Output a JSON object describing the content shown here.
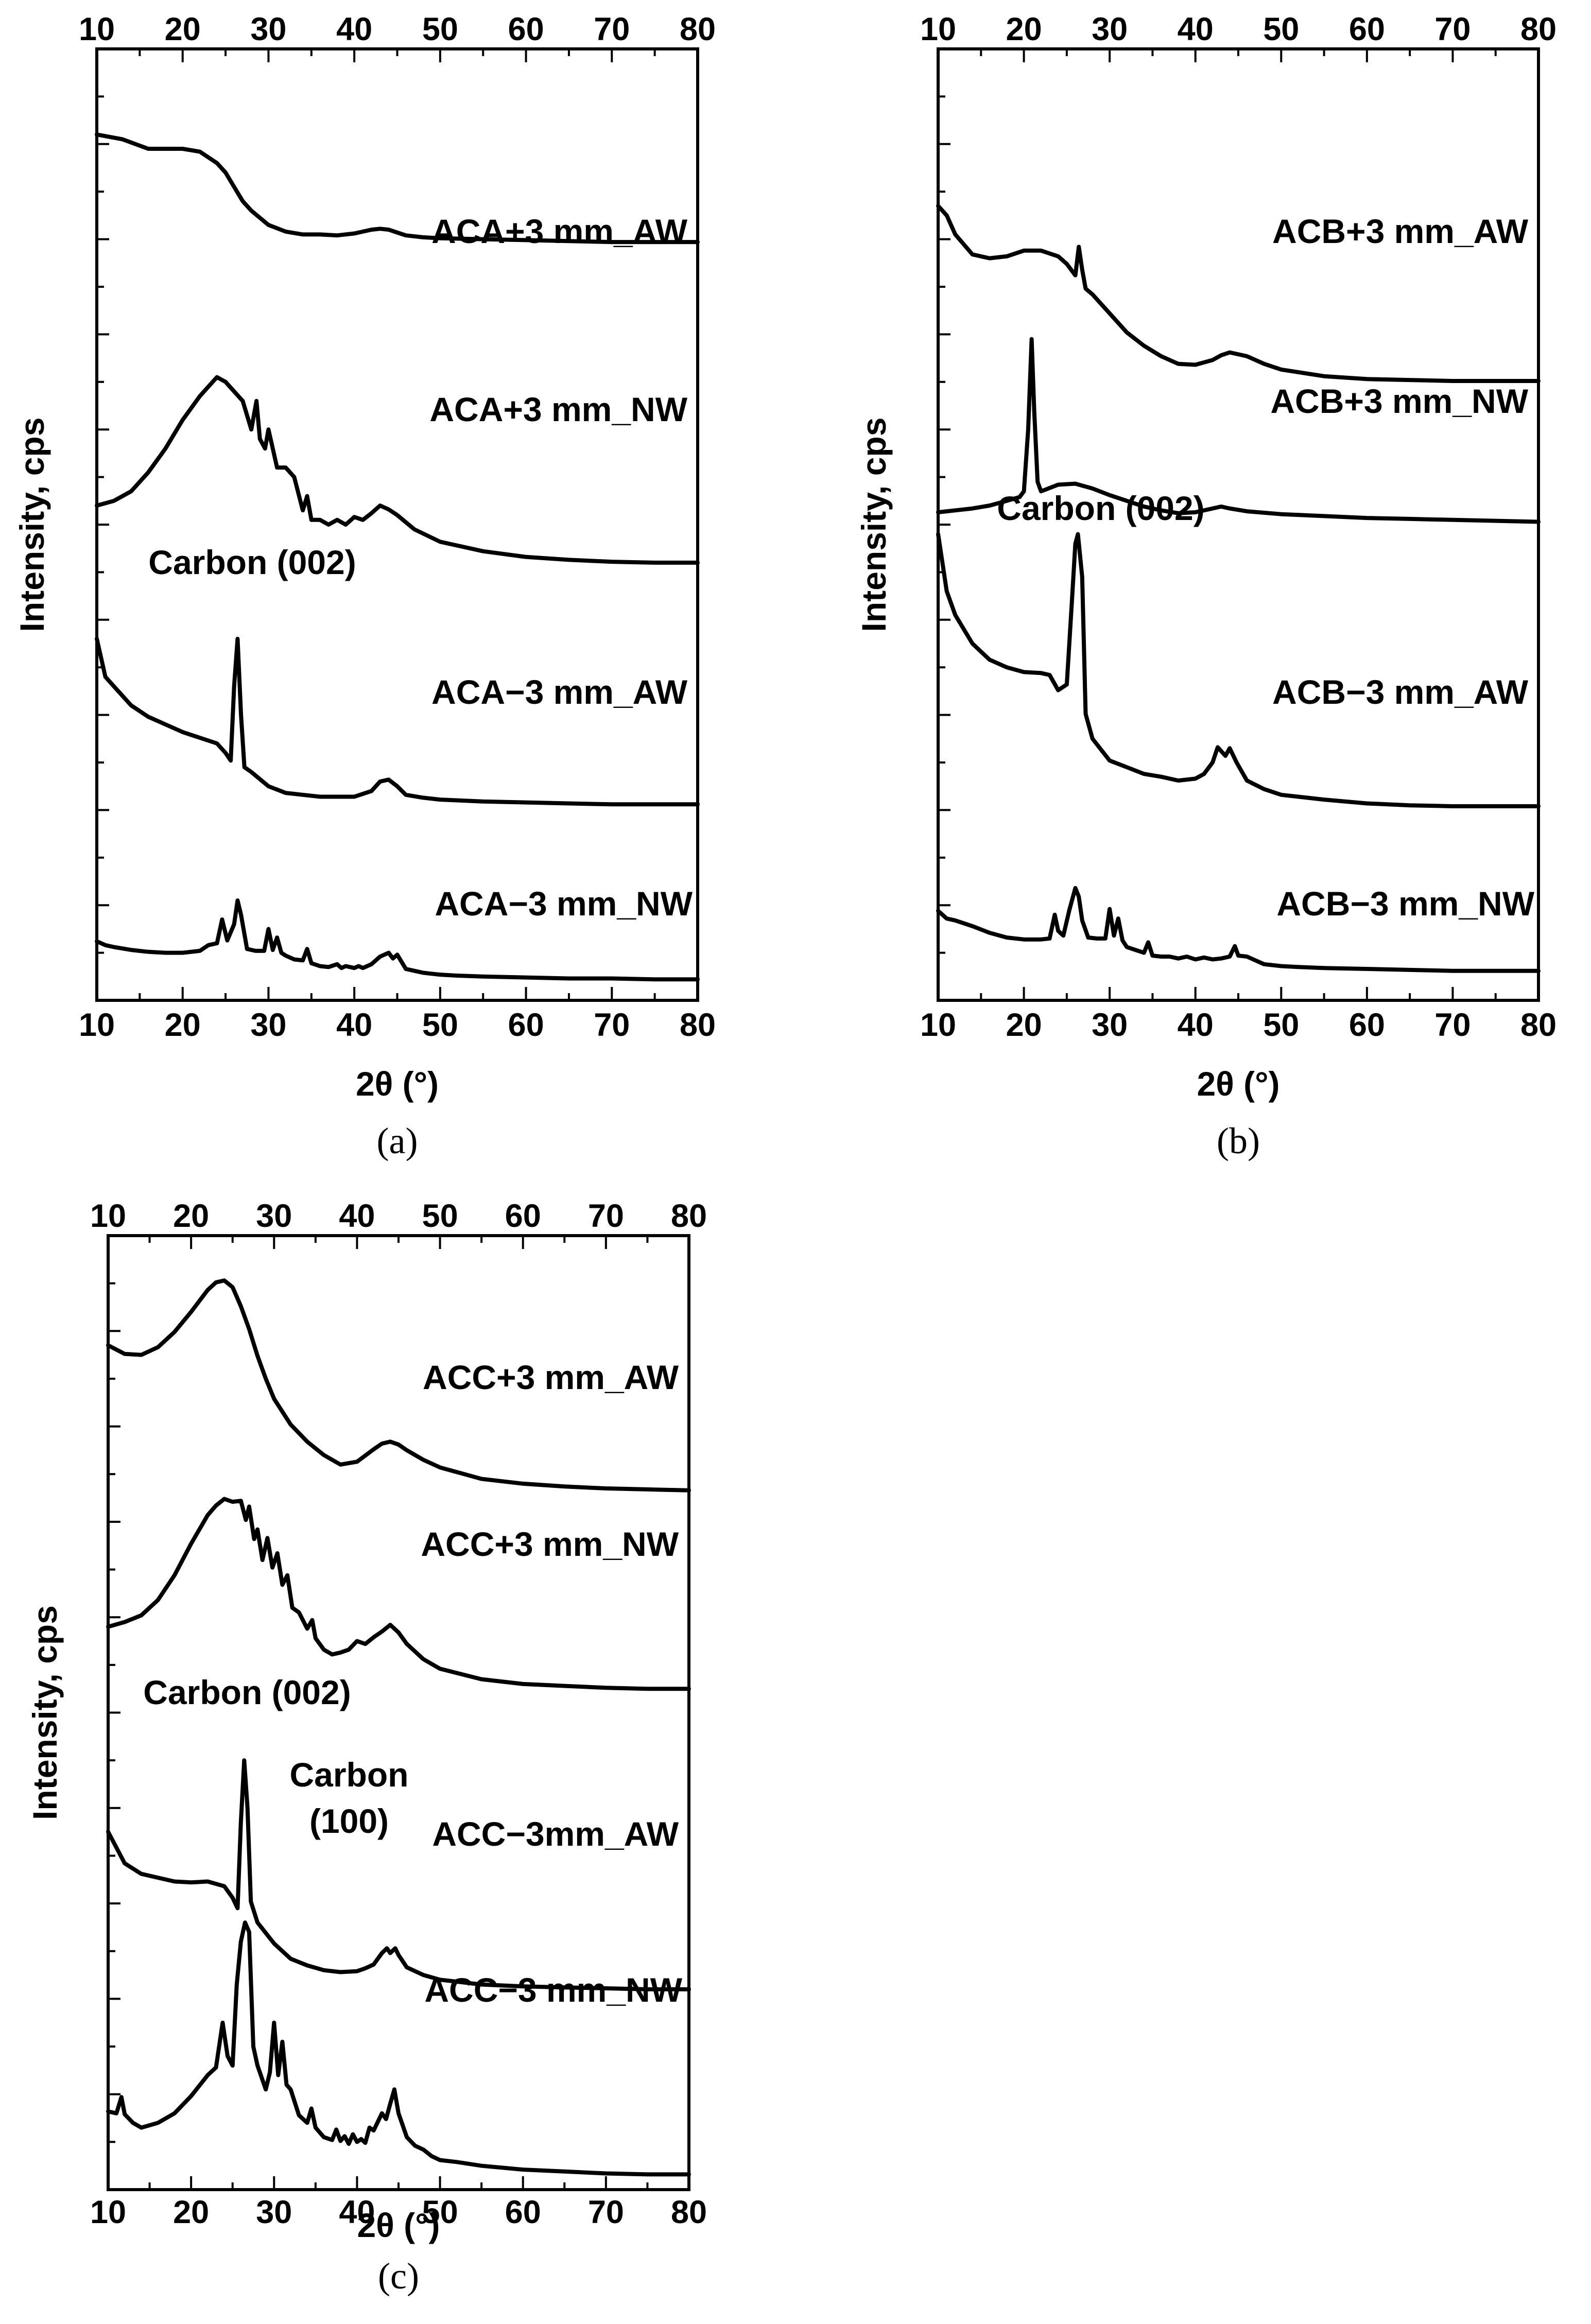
{
  "chart_data": [
    {
      "type": "line",
      "panel_label": "(a)",
      "xlabel": "2θ (°)",
      "ylabel": "Intensity, cps",
      "xlim": [
        10,
        80
      ],
      "xticks": [
        "10",
        "20",
        "30",
        "40",
        "50",
        "60",
        "70",
        "80"
      ],
      "ylim": [
        0,
        100
      ],
      "yticks_labeled": false,
      "annotations": [
        {
          "text": "Carbon (002)",
          "x": 26.4,
          "y": 68
        }
      ],
      "series": [
        {
          "name": "ACA+3 mm_AW",
          "x": [
            10,
            13,
            16,
            18,
            20,
            22,
            24,
            25,
            26,
            27,
            28,
            30,
            32,
            34,
            36,
            38,
            40,
            42,
            43,
            44,
            46,
            48,
            50,
            55,
            60,
            65,
            70,
            75,
            80
          ],
          "y": [
            91,
            90.5,
            89.5,
            89.5,
            89.5,
            89.2,
            88,
            87,
            85.5,
            84,
            83,
            81.5,
            80.8,
            80.5,
            80.5,
            80.4,
            80.6,
            81,
            81.1,
            81,
            80.4,
            80.2,
            80.1,
            80,
            79.9,
            79.8,
            79.7,
            79.7,
            79.7
          ]
        },
        {
          "name": "ACA+3 mm_NW",
          "x": [
            10,
            12,
            14,
            16,
            18,
            20,
            22,
            23,
            24,
            25,
            26,
            27,
            28,
            28.6,
            29,
            29.6,
            30,
            31,
            32,
            33,
            34,
            34.5,
            35,
            36,
            37,
            38,
            39,
            40,
            41,
            42,
            43,
            44,
            45,
            47,
            50,
            55,
            60,
            65,
            70,
            75,
            80
          ],
          "y": [
            52,
            52.5,
            53.5,
            55.5,
            58,
            61,
            63.5,
            64.5,
            65.5,
            65,
            64,
            63,
            60,
            63,
            59,
            58,
            60,
            56,
            56,
            55,
            51.5,
            53,
            50.5,
            50.5,
            50,
            50.5,
            50,
            50.8,
            50.5,
            51.2,
            52,
            51.6,
            51,
            49.5,
            48.2,
            47.2,
            46.6,
            46.3,
            46.1,
            46,
            46
          ]
        },
        {
          "name": "ACA−3 mm_AW",
          "x": [
            10,
            11,
            12,
            14,
            16,
            18,
            20,
            22,
            24,
            25,
            25.6,
            26,
            26.4,
            26.8,
            27.2,
            28,
            30,
            32,
            34,
            36,
            38,
            40,
            42,
            43,
            44,
            45,
            46,
            48,
            50,
            55,
            60,
            65,
            70,
            75,
            80
          ],
          "y": [
            38,
            34,
            33,
            31,
            29.8,
            29,
            28.2,
            27.6,
            27,
            26,
            25.2,
            33,
            38,
            30,
            24.5,
            24,
            22.5,
            21.8,
            21.6,
            21.4,
            21.4,
            21.4,
            22,
            23,
            23.2,
            22.5,
            21.6,
            21.3,
            21.1,
            20.9,
            20.8,
            20.7,
            20.6,
            20.6,
            20.6
          ]
        },
        {
          "name": "ACA−3 mm_NW",
          "x": [
            10,
            11,
            12,
            14,
            16,
            18,
            20,
            22,
            23,
            24,
            24.6,
            25.2,
            26,
            26.4,
            26.8,
            27.5,
            28.5,
            29.5,
            30,
            30.5,
            31,
            31.5,
            32,
            33,
            34,
            34.5,
            35,
            36,
            37,
            38,
            38.5,
            39,
            40,
            40.5,
            41,
            42,
            43,
            44,
            44.5,
            45,
            46,
            47,
            48,
            49,
            50,
            52,
            55,
            60,
            65,
            70,
            75,
            80
          ],
          "y": [
            6.2,
            5.8,
            5.6,
            5.3,
            5.1,
            5.0,
            5.0,
            5.2,
            5.8,
            6,
            8.5,
            6.3,
            8,
            10.5,
            9,
            5.4,
            5.2,
            5.2,
            7.5,
            5.3,
            6.6,
            5,
            4.7,
            4.3,
            4.2,
            5.4,
            3.9,
            3.6,
            3.5,
            3.8,
            3.4,
            3.6,
            3.4,
            3.6,
            3.4,
            3.8,
            4.6,
            5.0,
            4.4,
            4.8,
            3.3,
            3.1,
            2.9,
            2.8,
            2.7,
            2.6,
            2.5,
            2.4,
            2.3,
            2.3,
            2.2,
            2.2
          ]
        }
      ]
    },
    {
      "type": "line",
      "panel_label": "(b)",
      "xlabel": "2θ (°)",
      "ylabel": "Intensity, cps",
      "xlim": [
        10,
        80
      ],
      "xticks": [
        "10",
        "20",
        "30",
        "40",
        "50",
        "60",
        "70",
        "80"
      ],
      "ylim": [
        0,
        100
      ],
      "yticks_labeled": false,
      "annotations": [
        {
          "text": "Carbon (002)",
          "x": 23.5,
          "y": 48
        }
      ],
      "series": [
        {
          "name": "ACB+3 mm_AW",
          "x": [
            10,
            11,
            12,
            14,
            16,
            18,
            20,
            22,
            24,
            25,
            26,
            26.4,
            26.8,
            27.2,
            28,
            30,
            32,
            34,
            36,
            38,
            40,
            42,
            43,
            44,
            46,
            48,
            50,
            55,
            60,
            65,
            70,
            75,
            80
          ],
          "y": [
            83.5,
            82.5,
            80.5,
            78.4,
            78,
            78.2,
            78.8,
            78.8,
            78.2,
            77.4,
            76.2,
            79.2,
            76.8,
            74.8,
            74.2,
            72.2,
            70.2,
            68.8,
            67.7,
            66.9,
            66.8,
            67.3,
            67.8,
            68.1,
            67.7,
            66.9,
            66.3,
            65.6,
            65.3,
            65.2,
            65.1,
            65.1,
            65.1
          ]
        },
        {
          "name": "ACB+3 mm_NW",
          "x": [
            10,
            12,
            14,
            16,
            18,
            19.5,
            20,
            20.5,
            20.9,
            21.2,
            21.6,
            22,
            24,
            26,
            28,
            30,
            32,
            34,
            36,
            38,
            40,
            42,
            43,
            44,
            46,
            50,
            55,
            60,
            65,
            70,
            75,
            80
          ],
          "y": [
            51.3,
            51.5,
            51.7,
            52,
            52.5,
            52.9,
            53.5,
            60,
            69.5,
            62,
            54.5,
            53.5,
            54.2,
            54.3,
            53.8,
            53.1,
            52.5,
            51.9,
            51.5,
            51.2,
            51.3,
            51.7,
            51.9,
            51.7,
            51.4,
            51.1,
            50.9,
            50.7,
            50.6,
            50.5,
            50.4,
            50.3
          ]
        },
        {
          "name": "ACB−3 mm_AW",
          "x": [
            10,
            11,
            12,
            14,
            16,
            18,
            20,
            22,
            23,
            24,
            25,
            25.6,
            26,
            26.3,
            26.8,
            27.2,
            28,
            30,
            32,
            34,
            36,
            38,
            40,
            41,
            42,
            42.6,
            43,
            43.5,
            44,
            44.8,
            46,
            48,
            50,
            55,
            60,
            65,
            70,
            75,
            80
          ],
          "y": [
            49,
            43,
            40.5,
            37.5,
            35.8,
            35,
            34.5,
            34.4,
            34.2,
            32.6,
            33.2,
            42,
            48,
            49,
            44.5,
            30.1,
            27.5,
            25.2,
            24.5,
            23.8,
            23.5,
            23.1,
            23.3,
            23.8,
            25,
            26.6,
            26.2,
            25.7,
            26.5,
            25,
            23.1,
            22.2,
            21.6,
            21.1,
            20.7,
            20.5,
            20.4,
            20.4,
            20.4
          ]
        },
        {
          "name": "ACB−3 mm_NW",
          "x": [
            10,
            11,
            12,
            14,
            16,
            18,
            20,
            22,
            23,
            23.6,
            24,
            24.6,
            25.3,
            26,
            26.4,
            26.8,
            27.5,
            28.5,
            29.5,
            30,
            30.5,
            31,
            31.5,
            32,
            33,
            34,
            34.5,
            35,
            36,
            37,
            38,
            39,
            40,
            41,
            42,
            43,
            44,
            44.6,
            45,
            46,
            47,
            48,
            49,
            50,
            52,
            55,
            60,
            65,
            70,
            75,
            80
          ],
          "y": [
            9.4,
            8.6,
            8.4,
            7.8,
            7.1,
            6.6,
            6.4,
            6.4,
            6.5,
            9,
            7.3,
            6.8,
            9.5,
            11.8,
            10.9,
            8.4,
            6.6,
            6.5,
            6.5,
            9.6,
            6.8,
            8.6,
            6.3,
            5.6,
            5.3,
            5,
            6.1,
            4.7,
            4.6,
            4.6,
            4.4,
            4.6,
            4.3,
            4.5,
            4.3,
            4.4,
            4.6,
            5.7,
            4.7,
            4.6,
            4.2,
            3.8,
            3.7,
            3.6,
            3.5,
            3.4,
            3.3,
            3.2,
            3.1,
            3.1,
            3.1
          ]
        }
      ]
    },
    {
      "type": "line",
      "panel_label": "(c)",
      "xlabel": "2θ (°)",
      "ylabel": "Intensity, cps",
      "xlim": [
        10,
        80
      ],
      "xticks": [
        "10",
        "20",
        "30",
        "40",
        "50",
        "60",
        "70",
        "80"
      ],
      "ylim": [
        0,
        100
      ],
      "yticks_labeled": false,
      "annotations": [
        {
          "text": "Carbon (002)",
          "x": 26.0,
          "y": 46
        },
        {
          "text": "Carbon",
          "x": 38.0,
          "y": 38
        },
        {
          "text": "(100)",
          "x": 38.0,
          "y": 34
        }
      ],
      "series": [
        {
          "name": "ACC+3 mm_AW",
          "x": [
            10,
            12,
            14,
            16,
            18,
            20,
            22,
            23,
            24,
            25,
            26,
            27,
            28,
            29,
            30,
            32,
            34,
            36,
            38,
            40,
            42,
            43,
            44,
            45,
            46,
            48,
            50,
            55,
            60,
            65,
            70,
            75,
            80
          ],
          "y": [
            88.5,
            87.6,
            87.5,
            88.3,
            89.9,
            92,
            94.3,
            95.1,
            95.3,
            94.6,
            92.6,
            90.2,
            87.4,
            85,
            82.9,
            80.2,
            78.4,
            77,
            76,
            76.3,
            77.6,
            78.2,
            78.4,
            78.1,
            77.5,
            76.5,
            75.7,
            74.5,
            74,
            73.7,
            73.5,
            73.4,
            73.3
          ]
        },
        {
          "name": "ACC+3 mm_NW",
          "x": [
            10,
            12,
            14,
            16,
            18,
            20,
            22,
            23,
            24,
            25,
            26,
            26.6,
            27,
            27.6,
            28,
            28.6,
            29.2,
            29.8,
            30.4,
            31,
            31.6,
            32.2,
            33,
            34,
            34.6,
            35,
            36,
            37,
            38,
            39,
            40,
            41,
            42,
            43,
            44,
            45,
            46,
            48,
            50,
            55,
            60,
            65,
            70,
            75,
            80
          ],
          "y": [
            59,
            59.5,
            60.2,
            61.8,
            64.4,
            67.7,
            70.7,
            71.7,
            72.4,
            72.1,
            72.2,
            70.2,
            71.6,
            68.2,
            69.2,
            66,
            68.3,
            65.2,
            66.7,
            63.4,
            64.4,
            61,
            60.5,
            58.8,
            59.7,
            57.8,
            56.6,
            56.1,
            56.3,
            56.6,
            57.5,
            57.2,
            57.9,
            58.5,
            59.2,
            58.4,
            57.2,
            55.6,
            54.6,
            53.5,
            53,
            52.8,
            52.6,
            52.5,
            52.5
          ]
        },
        {
          "name": "ACC−3mm_AW",
          "x": [
            10,
            12,
            14,
            16,
            18,
            20,
            22,
            24,
            25,
            25.6,
            26,
            26.4,
            26.8,
            27.2,
            28,
            30,
            32,
            34,
            36,
            38,
            40,
            41,
            42,
            43,
            43.6,
            44,
            44.6,
            45,
            46,
            48,
            50,
            52,
            55,
            60,
            65,
            70,
            75,
            80
          ],
          "y": [
            37.5,
            34.2,
            33.1,
            32.7,
            32.3,
            32.2,
            32.3,
            31.8,
            30.6,
            29.5,
            38.5,
            45,
            40,
            30.2,
            28,
            25.8,
            24.2,
            23.5,
            23,
            22.8,
            22.9,
            23.2,
            23.6,
            24.8,
            25.3,
            24.8,
            25.3,
            24.6,
            23.3,
            22.5,
            22,
            21.8,
            21.5,
            21.3,
            21.2,
            21.1,
            21,
            21
          ]
        },
        {
          "name": "ACC−3 mm_NW",
          "x": [
            10,
            11,
            11.6,
            12,
            13,
            14,
            16,
            18,
            20,
            22,
            23,
            23.8,
            24.4,
            25,
            25.5,
            26,
            26.5,
            27,
            27.5,
            28,
            29,
            29.5,
            30,
            30.5,
            31,
            31.5,
            32,
            33,
            34,
            34.5,
            35,
            36,
            37,
            37.5,
            38,
            38.5,
            39,
            39.5,
            40,
            40.5,
            41,
            41.5,
            42,
            43,
            43.5,
            44,
            44.5,
            45,
            46,
            47,
            48,
            49,
            50,
            52,
            55,
            60,
            65,
            70,
            75,
            80
          ],
          "y": [
            8.2,
            8,
            9.7,
            7.9,
            7,
            6.5,
            7,
            8,
            9.8,
            12,
            12.8,
            17.5,
            14,
            13,
            21.5,
            26,
            28,
            27,
            15,
            13,
            10.5,
            12.3,
            17.5,
            12,
            15.5,
            11,
            10.5,
            7.8,
            7,
            8.5,
            6.5,
            5.5,
            5.2,
            6.3,
            5.1,
            5.6,
            4.8,
            5.8,
            5,
            5.3,
            4.9,
            6.5,
            6.2,
            8,
            7.4,
            9,
            10.5,
            8,
            5.5,
            4.6,
            4.2,
            3.5,
            3.1,
            2.9,
            2.5,
            2.1,
            1.9,
            1.7,
            1.6,
            1.6
          ]
        }
      ]
    }
  ]
}
